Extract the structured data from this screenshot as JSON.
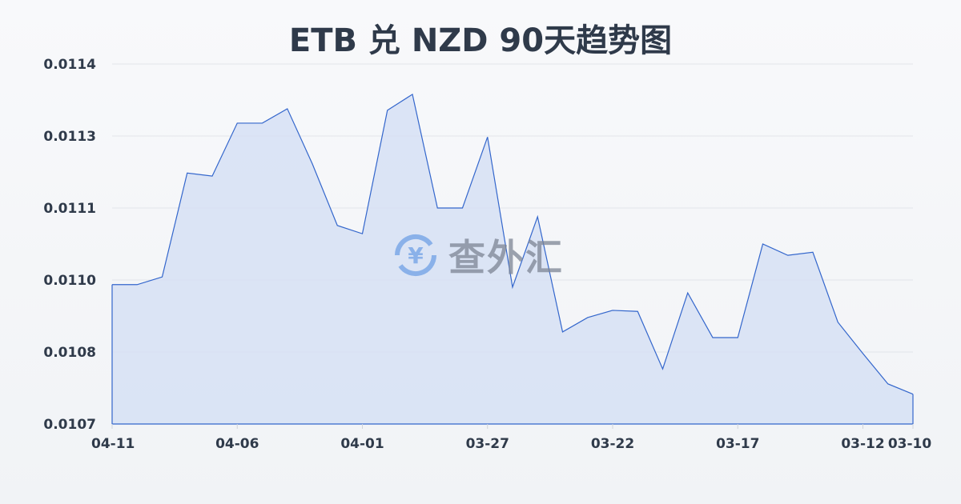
{
  "chart_data": {
    "type": "area",
    "title": "ETB 兑 NZD 90天趋势图",
    "xlabel": "",
    "ylabel": "",
    "ylim": [
      0.0107,
      0.0114
    ],
    "y_ticks": [
      "0.0107",
      "0.0108",
      "0.0110",
      "0.0111",
      "0.0113",
      "0.0114"
    ],
    "x_ticks": [
      "04-11",
      "04-06",
      "04-01",
      "03-27",
      "03-22",
      "03-17",
      "03-12",
      "03-10"
    ],
    "grid": true,
    "x": [
      "04-11",
      "04-10",
      "04-09",
      "04-08",
      "04-07",
      "04-06",
      "04-05",
      "04-04",
      "04-03",
      "04-02",
      "04-01",
      "03-31",
      "03-30",
      "03-29",
      "03-28",
      "03-27",
      "03-26",
      "03-25",
      "03-24",
      "03-23",
      "03-22",
      "03-21",
      "03-20",
      "03-19",
      "03-18",
      "03-17",
      "03-16",
      "03-15",
      "03-14",
      "03-13",
      "03-12",
      "03-11",
      "03-10"
    ],
    "values": [
      0.010971,
      0.010971,
      0.010986,
      0.011188,
      0.011182,
      0.011285,
      0.011285,
      0.011313,
      0.011206,
      0.011086,
      0.01107,
      0.01131,
      0.011341,
      0.01112,
      0.01112,
      0.011258,
      0.010966,
      0.011103,
      0.010879,
      0.010907,
      0.010921,
      0.010919,
      0.010807,
      0.010955,
      0.010868,
      0.010868,
      0.01105,
      0.011028,
      0.011034,
      0.010898,
      0.010837,
      0.010778,
      0.010758
    ],
    "colors": {
      "line": "#3366cc",
      "fill": "#d6e0f5"
    }
  },
  "watermark": {
    "text": "查外汇",
    "icon": "yen-exchange-icon"
  }
}
